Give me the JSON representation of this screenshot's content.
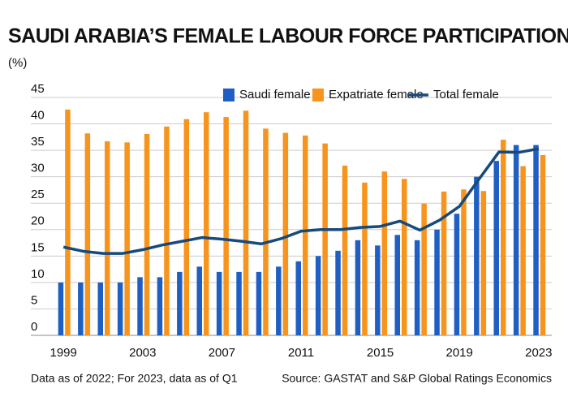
{
  "chart_data": {
    "type": "bar_line",
    "title": "SAUDI ARABIA’S FEMALE LABOUR FORCE PARTICIPATION RATE",
    "subtitle": "(%)",
    "note": "Data as of 2022; For 2023, data as of Q1",
    "source": "Source: GASTAT and S&P Global Ratings Economics",
    "categories": [
      "1999",
      null,
      null,
      null,
      "2003",
      null,
      null,
      null,
      "2007",
      null,
      null,
      null,
      "2011",
      null,
      null,
      null,
      "2015",
      null,
      null,
      null,
      "2019",
      null,
      null,
      null,
      "2023"
    ],
    "series": [
      {
        "name": "Saudi female",
        "kind": "bar",
        "color": "#1f5fc4",
        "values": [
          10,
          10,
          10,
          10,
          11,
          11,
          12,
          13,
          12,
          12,
          12,
          13,
          14,
          15,
          16,
          18,
          17,
          19,
          18,
          20,
          23,
          30,
          33,
          36,
          36
        ]
      },
      {
        "name": "Expatriate female",
        "kind": "bar",
        "color": "#f7941d",
        "values": [
          42.7,
          38.2,
          36.7,
          36.5,
          38.1,
          39.5,
          40.9,
          42.2,
          41.3,
          42.5,
          39.1,
          38.3,
          37.8,
          36.3,
          32.1,
          28.9,
          31,
          29.6,
          24.9,
          27.2,
          27.6,
          27.3,
          37,
          32,
          34.1
        ]
      },
      {
        "name": "Total female",
        "kind": "line",
        "color": "#174a7c",
        "values": [
          16.7,
          15.9,
          15.5,
          15.5,
          16.2,
          17.1,
          17.8,
          18.5,
          18.2,
          17.8,
          17.3,
          18.3,
          19.7,
          20,
          20,
          20.4,
          20.6,
          21.6,
          19.9,
          21.8,
          24.4,
          29.6,
          34.7,
          34.6,
          35.3
        ]
      }
    ],
    "ylim": [
      0,
      45
    ],
    "yticks": [
      0,
      5,
      10,
      15,
      20,
      25,
      30,
      35,
      40,
      45
    ],
    "grid": true,
    "legend": "top-right"
  }
}
